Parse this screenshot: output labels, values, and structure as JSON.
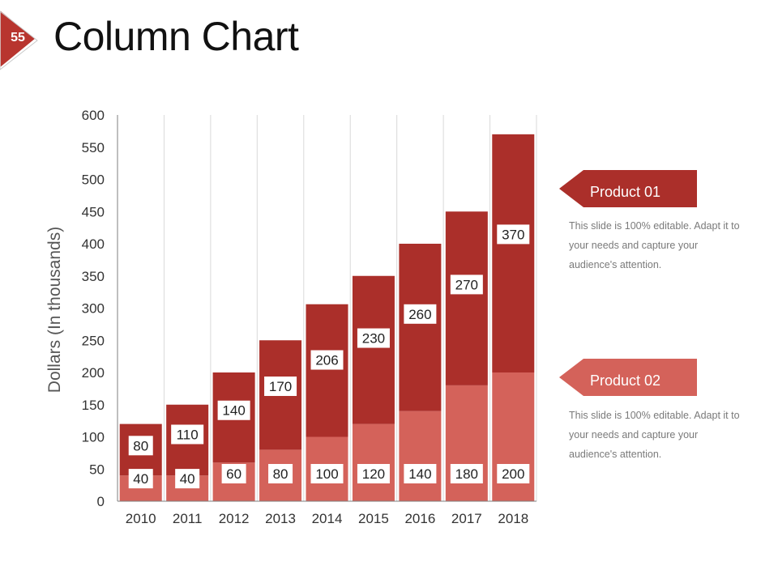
{
  "slide": {
    "number": "55",
    "title": "Column Chart"
  },
  "colors": {
    "product01": "#ab2f2a",
    "product02": "#d4625a",
    "badge": "#b8352f"
  },
  "legend": [
    {
      "label": "Product 01",
      "description": "This slide is 100% editable. Adapt it to your needs and capture your audience's attention."
    },
    {
      "label": "Product 02",
      "description": "This slide is 100% editable. Adapt it to your needs and capture your audience's attention."
    }
  ],
  "chart_data": {
    "type": "bar",
    "stacked": true,
    "title": "",
    "xlabel": "",
    "ylabel": "Dollars (In thousands)",
    "ylim": [
      0,
      600
    ],
    "ytick_step": 50,
    "categories": [
      "2010",
      "2011",
      "2012",
      "2013",
      "2014",
      "2015",
      "2016",
      "2017",
      "2018"
    ],
    "series": [
      {
        "name": "Product 02",
        "values": [
          40,
          40,
          60,
          80,
          100,
          120,
          140,
          180,
          200
        ]
      },
      {
        "name": "Product 01",
        "values": [
          80,
          110,
          140,
          170,
          206,
          230,
          260,
          270,
          370
        ]
      }
    ]
  }
}
